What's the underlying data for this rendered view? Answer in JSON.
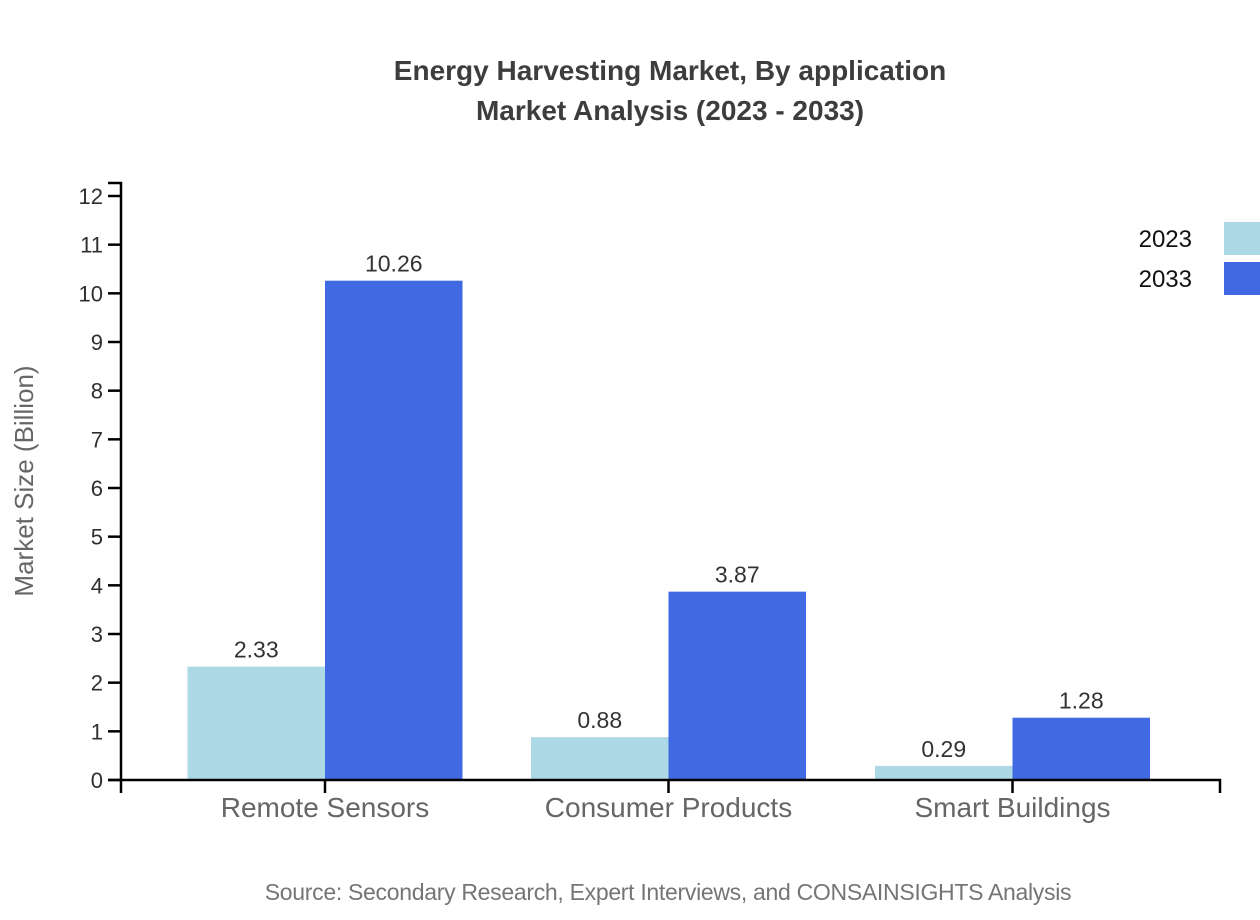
{
  "chart_data": {
    "type": "bar",
    "title": "Energy Harvesting Market, By application Market Analysis (2023 - 2033)",
    "title_lines": [
      "Energy Harvesting Market, By application",
      "Market Analysis (2023 - 2033)"
    ],
    "categories": [
      "Remote Sensors",
      "Consumer Products",
      "Smart Buildings"
    ],
    "series": [
      {
        "name": "2023",
        "color": "#ADD8E6",
        "values": [
          2.33,
          0.88,
          0.29
        ]
      },
      {
        "name": "2033",
        "color": "#4169E1",
        "values": [
          10.26,
          3.87,
          1.28
        ]
      }
    ],
    "value_labels": [
      "2.33",
      "10.26",
      "0.88",
      "3.87",
      "0.29",
      "1.28"
    ],
    "xlabel": "",
    "ylabel": "Market Size (Billion)",
    "ylim": [
      0,
      12
    ],
    "yticks": [
      0,
      1,
      2,
      3,
      4,
      5,
      6,
      7,
      8,
      9,
      10,
      11,
      12
    ],
    "grid": false,
    "legend_position": "top-right, swatches flush to right canvas edge",
    "axis_color": "#000000",
    "text_colors": {
      "title": "#3d3d3d",
      "labels": "#666666",
      "values": "#333333",
      "source": "#757575"
    }
  },
  "source": "Source: Secondary Research, Expert Interviews, and CONSAINSIGHTS Analysis"
}
